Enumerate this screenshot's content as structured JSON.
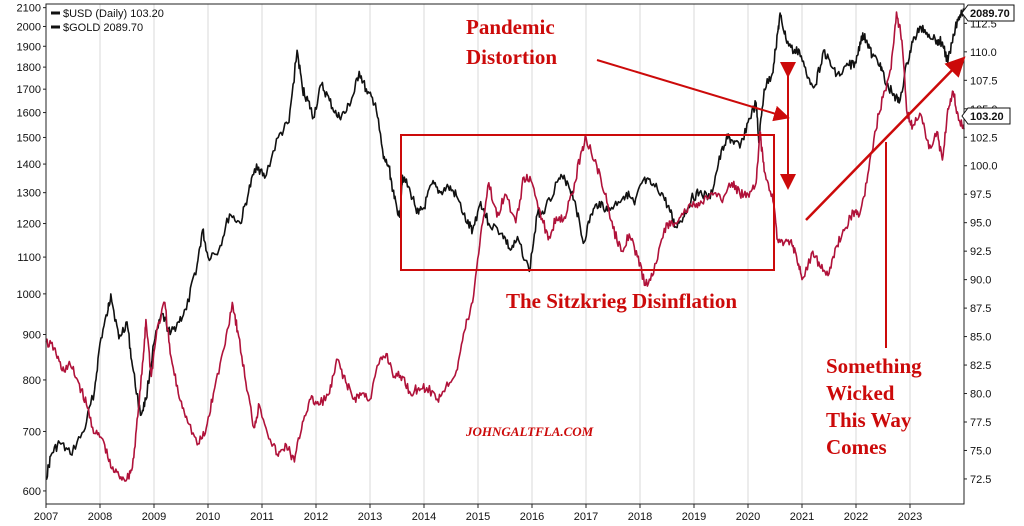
{
  "chart_data": {
    "type": "line",
    "legend": [
      {
        "label": "$USD (Daily) 103.20",
        "color": "#111111"
      },
      {
        "label": "$GOLD 2089.70",
        "color": "#111111"
      }
    ],
    "x_ticks": [
      "2007",
      "2008",
      "2009",
      "2010",
      "2011",
      "2012",
      "2013",
      "2014",
      "2015",
      "2016",
      "2017",
      "2018",
      "2019",
      "2020",
      "2021",
      "2022",
      "2023"
    ],
    "xlim": [
      2007.0,
      2024.0
    ],
    "left_axis": {
      "scale": "log",
      "ticks": [
        600,
        700,
        800,
        900,
        1000,
        1100,
        1200,
        1300,
        1400,
        1500,
        1600,
        1700,
        1800,
        1900,
        2000,
        2100
      ],
      "ylim": [
        580,
        2120
      ]
    },
    "right_axis": {
      "scale": "linear",
      "ticks": [
        72.5,
        75.0,
        77.5,
        80.0,
        82.5,
        85.0,
        87.5,
        90.0,
        92.5,
        95.0,
        97.5,
        100.0,
        102.5,
        105.0,
        107.5,
        110.0,
        112.5
      ],
      "ylim": [
        70.3,
        114.2
      ]
    },
    "series": [
      {
        "name": "$GOLD",
        "color": "#111111",
        "axis": "left",
        "last_value": "2089.70",
        "points": [
          [
            2007.0,
            620
          ],
          [
            2007.1,
            660
          ],
          [
            2007.25,
            680
          ],
          [
            2007.45,
            660
          ],
          [
            2007.7,
            700
          ],
          [
            2007.9,
            780
          ],
          [
            2008.0,
            880
          ],
          [
            2008.15,
            960
          ],
          [
            2008.2,
            1000
          ],
          [
            2008.35,
            890
          ],
          [
            2008.5,
            930
          ],
          [
            2008.6,
            830
          ],
          [
            2008.75,
            730
          ],
          [
            2008.85,
            760
          ],
          [
            2009.0,
            880
          ],
          [
            2009.15,
            950
          ],
          [
            2009.3,
            900
          ],
          [
            2009.45,
            930
          ],
          [
            2009.6,
            960
          ],
          [
            2009.8,
            1080
          ],
          [
            2009.9,
            1180
          ],
          [
            2010.0,
            1100
          ],
          [
            2010.2,
            1120
          ],
          [
            2010.4,
            1230
          ],
          [
            2010.6,
            1200
          ],
          [
            2010.75,
            1300
          ],
          [
            2010.9,
            1400
          ],
          [
            2011.05,
            1350
          ],
          [
            2011.3,
            1500
          ],
          [
            2011.5,
            1560
          ],
          [
            2011.65,
            1880
          ],
          [
            2011.75,
            1700
          ],
          [
            2011.85,
            1650
          ],
          [
            2011.95,
            1580
          ],
          [
            2012.1,
            1720
          ],
          [
            2012.25,
            1650
          ],
          [
            2012.4,
            1580
          ],
          [
            2012.55,
            1600
          ],
          [
            2012.7,
            1680
          ],
          [
            2012.8,
            1780
          ],
          [
            2012.95,
            1680
          ],
          [
            2013.1,
            1640
          ],
          [
            2013.25,
            1420
          ],
          [
            2013.35,
            1390
          ],
          [
            2013.45,
            1280
          ],
          [
            2013.55,
            1220
          ],
          [
            2013.6,
            1360
          ],
          [
            2013.75,
            1300
          ],
          [
            2013.9,
            1230
          ],
          [
            2014.0,
            1250
          ],
          [
            2014.15,
            1330
          ],
          [
            2014.3,
            1300
          ],
          [
            2014.45,
            1320
          ],
          [
            2014.6,
            1290
          ],
          [
            2014.8,
            1200
          ],
          [
            2014.9,
            1180
          ],
          [
            2015.05,
            1270
          ],
          [
            2015.2,
            1200
          ],
          [
            2015.45,
            1170
          ],
          [
            2015.6,
            1120
          ],
          [
            2015.75,
            1150
          ],
          [
            2015.95,
            1060
          ],
          [
            2016.1,
            1230
          ],
          [
            2016.25,
            1250
          ],
          [
            2016.5,
            1350
          ],
          [
            2016.65,
            1340
          ],
          [
            2016.8,
            1270
          ],
          [
            2016.95,
            1140
          ],
          [
            2017.1,
            1230
          ],
          [
            2017.25,
            1270
          ],
          [
            2017.4,
            1240
          ],
          [
            2017.6,
            1270
          ],
          [
            2017.75,
            1300
          ],
          [
            2017.9,
            1260
          ],
          [
            2018.05,
            1340
          ],
          [
            2018.2,
            1330
          ],
          [
            2018.4,
            1300
          ],
          [
            2018.55,
            1240
          ],
          [
            2018.65,
            1190
          ],
          [
            2018.8,
            1220
          ],
          [
            2018.95,
            1280
          ],
          [
            2019.1,
            1300
          ],
          [
            2019.3,
            1280
          ],
          [
            2019.45,
            1400
          ],
          [
            2019.6,
            1500
          ],
          [
            2019.7,
            1490
          ],
          [
            2019.85,
            1460
          ],
          [
            2020.0,
            1560
          ],
          [
            2020.15,
            1640
          ],
          [
            2020.2,
            1480
          ],
          [
            2020.3,
            1700
          ],
          [
            2020.45,
            1770
          ],
          [
            2020.55,
            1970
          ],
          [
            2020.6,
            2060
          ],
          [
            2020.7,
            1940
          ],
          [
            2020.85,
            1870
          ],
          [
            2020.95,
            1880
          ],
          [
            2021.1,
            1750
          ],
          [
            2021.25,
            1720
          ],
          [
            2021.4,
            1880
          ],
          [
            2021.55,
            1800
          ],
          [
            2021.7,
            1760
          ],
          [
            2021.85,
            1810
          ],
          [
            2022.0,
            1820
          ],
          [
            2022.1,
            1950
          ],
          [
            2022.2,
            1930
          ],
          [
            2022.3,
            1850
          ],
          [
            2022.45,
            1820
          ],
          [
            2022.55,
            1720
          ],
          [
            2022.7,
            1680
          ],
          [
            2022.8,
            1640
          ],
          [
            2022.95,
            1820
          ],
          [
            2023.05,
            1920
          ],
          [
            2023.2,
            2000
          ],
          [
            2023.35,
            1960
          ],
          [
            2023.5,
            1930
          ],
          [
            2023.6,
            1920
          ],
          [
            2023.7,
            1820
          ],
          [
            2023.8,
            1960
          ],
          [
            2023.9,
            2050
          ],
          [
            2024.0,
            2089.7
          ]
        ]
      },
      {
        "name": "$USD",
        "color": "#b0123a",
        "axis": "right",
        "last_value": "103.20",
        "points": [
          [
            2007.0,
            84.5
          ],
          [
            2007.15,
            84.0
          ],
          [
            2007.3,
            82.0
          ],
          [
            2007.45,
            82.5
          ],
          [
            2007.6,
            81.0
          ],
          [
            2007.75,
            79.0
          ],
          [
            2007.9,
            76.5
          ],
          [
            2008.05,
            76.0
          ],
          [
            2008.2,
            73.5
          ],
          [
            2008.35,
            72.8
          ],
          [
            2008.5,
            72.5
          ],
          [
            2008.6,
            73.5
          ],
          [
            2008.7,
            78.0
          ],
          [
            2008.8,
            83.0
          ],
          [
            2008.85,
            86.5
          ],
          [
            2008.95,
            81.5
          ],
          [
            2009.05,
            85.5
          ],
          [
            2009.2,
            88.0
          ],
          [
            2009.3,
            83.5
          ],
          [
            2009.45,
            80.0
          ],
          [
            2009.6,
            78.0
          ],
          [
            2009.8,
            75.5
          ],
          [
            2009.95,
            76.5
          ],
          [
            2010.1,
            80.0
          ],
          [
            2010.3,
            84.0
          ],
          [
            2010.45,
            88.0
          ],
          [
            2010.55,
            85.5
          ],
          [
            2010.7,
            81.0
          ],
          [
            2010.85,
            77.0
          ],
          [
            2010.95,
            79.0
          ],
          [
            2011.15,
            76.0
          ],
          [
            2011.3,
            74.5
          ],
          [
            2011.45,
            75.5
          ],
          [
            2011.6,
            74.0
          ],
          [
            2011.75,
            77.5
          ],
          [
            2011.9,
            79.5
          ],
          [
            2012.05,
            79.0
          ],
          [
            2012.25,
            80.0
          ],
          [
            2012.4,
            83.0
          ],
          [
            2012.55,
            81.0
          ],
          [
            2012.7,
            79.5
          ],
          [
            2012.85,
            80.0
          ],
          [
            2013.0,
            79.5
          ],
          [
            2013.15,
            82.5
          ],
          [
            2013.3,
            83.5
          ],
          [
            2013.45,
            81.5
          ],
          [
            2013.6,
            81.5
          ],
          [
            2013.75,
            80.0
          ],
          [
            2013.9,
            80.5
          ],
          [
            2014.05,
            80.5
          ],
          [
            2014.25,
            79.5
          ],
          [
            2014.4,
            80.5
          ],
          [
            2014.6,
            82.0
          ],
          [
            2014.75,
            85.5
          ],
          [
            2014.9,
            88.0
          ],
          [
            2015.05,
            94.0
          ],
          [
            2015.2,
            98.5
          ],
          [
            2015.35,
            95.5
          ],
          [
            2015.5,
            97.5
          ],
          [
            2015.7,
            95.0
          ],
          [
            2015.85,
            99.0
          ],
          [
            2016.0,
            98.5
          ],
          [
            2016.15,
            96.0
          ],
          [
            2016.3,
            93.5
          ],
          [
            2016.45,
            95.5
          ],
          [
            2016.6,
            95.5
          ],
          [
            2016.75,
            97.5
          ],
          [
            2016.9,
            101.0
          ],
          [
            2017.0,
            102.5
          ],
          [
            2017.2,
            100.0
          ],
          [
            2017.35,
            97.5
          ],
          [
            2017.5,
            94.5
          ],
          [
            2017.65,
            92.5
          ],
          [
            2017.8,
            94.0
          ],
          [
            2017.95,
            92.0
          ],
          [
            2018.1,
            89.5
          ],
          [
            2018.25,
            90.5
          ],
          [
            2018.45,
            94.5
          ],
          [
            2018.6,
            95.0
          ],
          [
            2018.75,
            95.5
          ],
          [
            2018.95,
            96.5
          ],
          [
            2019.1,
            96.5
          ],
          [
            2019.3,
            97.5
          ],
          [
            2019.5,
            97.0
          ],
          [
            2019.7,
            98.5
          ],
          [
            2019.85,
            97.5
          ],
          [
            2020.0,
            97.5
          ],
          [
            2020.15,
            98.5
          ],
          [
            2020.22,
            103.0
          ],
          [
            2020.3,
            99.5
          ],
          [
            2020.45,
            97.5
          ],
          [
            2020.55,
            93.5
          ],
          [
            2020.65,
            93.0
          ],
          [
            2020.8,
            93.5
          ],
          [
            2020.9,
            92.0
          ],
          [
            2021.0,
            90.0
          ],
          [
            2021.2,
            92.5
          ],
          [
            2021.35,
            91.0
          ],
          [
            2021.5,
            90.5
          ],
          [
            2021.65,
            93.0
          ],
          [
            2021.8,
            94.5
          ],
          [
            2021.95,
            96.0
          ],
          [
            2022.05,
            95.5
          ],
          [
            2022.2,
            98.5
          ],
          [
            2022.35,
            103.0
          ],
          [
            2022.5,
            106.0
          ],
          [
            2022.65,
            108.5
          ],
          [
            2022.75,
            113.5
          ],
          [
            2022.85,
            111.0
          ],
          [
            2022.95,
            104.5
          ],
          [
            2023.05,
            103.5
          ],
          [
            2023.2,
            104.5
          ],
          [
            2023.35,
            101.5
          ],
          [
            2023.5,
            103.0
          ],
          [
            2023.6,
            100.5
          ],
          [
            2023.7,
            105.0
          ],
          [
            2023.8,
            106.5
          ],
          [
            2023.9,
            104.0
          ],
          [
            2024.0,
            103.2
          ]
        ]
      }
    ],
    "annotations": [
      {
        "text_lines": [
          "Pandemic",
          "Distortion"
        ],
        "color": "#cc0a0a"
      },
      {
        "text_lines": [
          "The Sitzkrieg Disinflation"
        ],
        "color": "#cc0a0a"
      },
      {
        "text_lines": [
          "Something",
          "Wicked",
          "This Way",
          "Comes"
        ],
        "color": "#cc0a0a"
      }
    ],
    "watermark": "JOHNGALTFLA.COM",
    "last_value_tags": {
      "gold": "2089.70",
      "usd": "103.20"
    }
  }
}
